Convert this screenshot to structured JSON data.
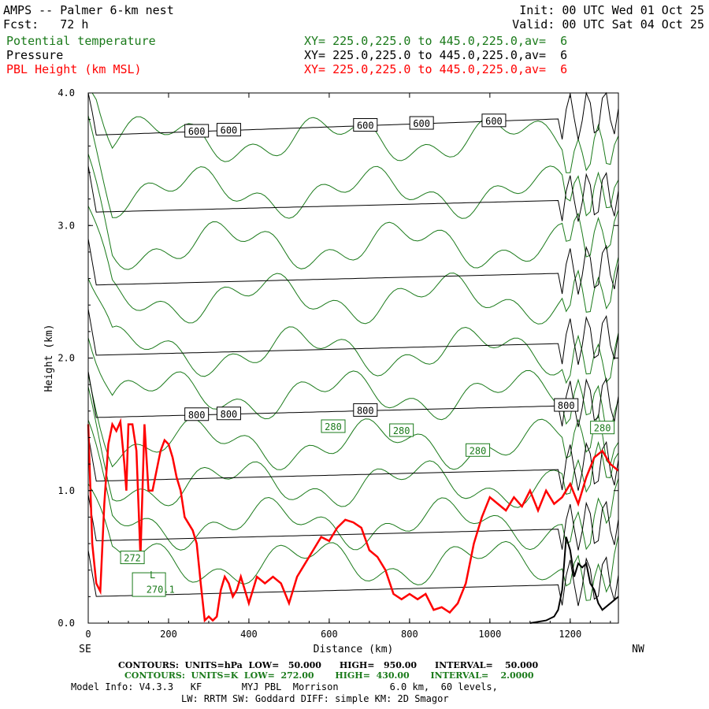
{
  "header": {
    "line1_left": "AMPS -- Palmer 6-km nest",
    "line1_right": "Init: 00 UTC Wed 01 Oct 25",
    "line2_left": "Fcst:   72 h",
    "line2_right": "Valid: 00 UTC Sat 04 Oct 25",
    "fields": [
      {
        "name": "Potential temperature",
        "xy": "XY= 225.0,225.0 to 445.0,225.0,av=  6",
        "color": "#1a7a1a"
      },
      {
        "name": "Pressure",
        "xy": "XY= 225.0,225.0 to 445.0,225.0,av=  6",
        "color": "#000000"
      },
      {
        "name": "PBL Height (km MSL)",
        "xy": "XY= 225.0,225.0 to 445.0,225.0,av=  6",
        "color": "#ff0000"
      }
    ]
  },
  "footer": {
    "contours1": "CONTOURS:  UNITS=hPa  LOW=   50.000      HIGH=   950.00      INTERVAL=    50.000",
    "contours2": "CONTOURS:  UNITS=K  LOW=  272.00       HIGH=  430.00       INTERVAL=    2.0000",
    "model1": "Model Info: V4.3.3   KF       MYJ PBL  Morrison         6.0 km,  60 levels,",
    "model2": "LW: RRTM SW: Goddard DIFF: simple KM: 2D Smagor"
  },
  "chart_data": {
    "type": "line",
    "xlabel": "Distance (km)",
    "ylabel": "Height (km)",
    "xlim": [
      0,
      1320
    ],
    "ylim": [
      0.0,
      4.0
    ],
    "x_ticks": [
      0,
      200,
      400,
      600,
      800,
      1000,
      1200
    ],
    "y_ticks": [
      "0.0",
      "1.0",
      "2.0",
      "3.0",
      "4.0"
    ],
    "left_end_label": "SE",
    "right_end_label": "NW",
    "colors": {
      "pressure": "#000000",
      "theta": "#1a7a1a",
      "pbl": "#ff0000"
    },
    "pbl_height": {
      "x": [
        0,
        10,
        20,
        30,
        40,
        50,
        60,
        70,
        80,
        90,
        95,
        100,
        110,
        120,
        130,
        140,
        150,
        160,
        170,
        180,
        190,
        200,
        210,
        220,
        230,
        240,
        250,
        260,
        270,
        280,
        290,
        300,
        310,
        320,
        330,
        340,
        350,
        360,
        370,
        380,
        390,
        400,
        420,
        440,
        460,
        480,
        500,
        520,
        540,
        560,
        580,
        600,
        620,
        640,
        660,
        680,
        700,
        720,
        740,
        760,
        780,
        800,
        820,
        840,
        860,
        880,
        900,
        920,
        940,
        960,
        980,
        1000,
        1020,
        1040,
        1060,
        1080,
        1100,
        1120,
        1140,
        1160,
        1180,
        1200,
        1220,
        1240,
        1260,
        1280,
        1300,
        1320
      ],
      "y": [
        1.5,
        0.6,
        0.3,
        0.24,
        0.9,
        1.35,
        1.5,
        1.45,
        1.52,
        1.2,
        1.0,
        1.5,
        1.5,
        1.3,
        0.5,
        1.5,
        1.0,
        1.0,
        1.15,
        1.3,
        1.38,
        1.35,
        1.25,
        1.1,
        1.0,
        0.8,
        0.75,
        0.7,
        0.6,
        0.3,
        0.02,
        0.05,
        0.02,
        0.05,
        0.25,
        0.35,
        0.3,
        0.2,
        0.25,
        0.35,
        0.25,
        0.15,
        0.35,
        0.3,
        0.35,
        0.3,
        0.15,
        0.35,
        0.45,
        0.55,
        0.65,
        0.62,
        0.72,
        0.78,
        0.76,
        0.72,
        0.55,
        0.5,
        0.4,
        0.22,
        0.18,
        0.22,
        0.18,
        0.22,
        0.1,
        0.12,
        0.08,
        0.15,
        0.3,
        0.6,
        0.8,
        0.95,
        0.9,
        0.85,
        0.95,
        0.88,
        1.0,
        0.85,
        1.0,
        0.9,
        0.95,
        1.05,
        0.9,
        1.1,
        1.25,
        1.3,
        1.2,
        1.15
      ]
    },
    "pressure_levels": [
      {
        "label": "600",
        "y0": 3.68,
        "y1": 3.82,
        "show_labels": true
      },
      {
        "label": "",
        "y0": 3.1,
        "y1": 3.2,
        "show_labels": false
      },
      {
        "label": "",
        "y0": 2.55,
        "y1": 2.65,
        "show_labels": false
      },
      {
        "label": "",
        "y0": 2.02,
        "y1": 2.12,
        "show_labels": false
      },
      {
        "label": "800",
        "y0": 1.55,
        "y1": 1.65,
        "show_labels": true
      },
      {
        "label": "",
        "y0": 1.07,
        "y1": 1.17,
        "show_labels": false
      },
      {
        "label": "",
        "y0": 0.62,
        "y1": 0.72,
        "show_labels": false
      },
      {
        "label": "",
        "y0": 0.2,
        "y1": 0.3,
        "show_labels": false
      }
    ],
    "pressure_label_x": [
      270,
      350,
      690,
      830,
      1010
    ],
    "pressure_800_label_x": [
      270,
      350,
      690,
      1190
    ],
    "theta_labels": [
      {
        "text": "280",
        "x": 610,
        "y": 1.48
      },
      {
        "text": "280",
        "x": 780,
        "y": 1.45
      },
      {
        "text": "280",
        "x": 970,
        "y": 1.3
      },
      {
        "text": "280",
        "x": 1280,
        "y": 1.47
      },
      {
        "text": "272",
        "x": 110,
        "y": 0.49
      }
    ],
    "annotations": [
      {
        "text": "L",
        "x": 160,
        "y": 0.34,
        "color": "#1a7a1a"
      },
      {
        "text": "270.1",
        "x": 180,
        "y": 0.23,
        "color": "#1a7a1a"
      }
    ]
  }
}
